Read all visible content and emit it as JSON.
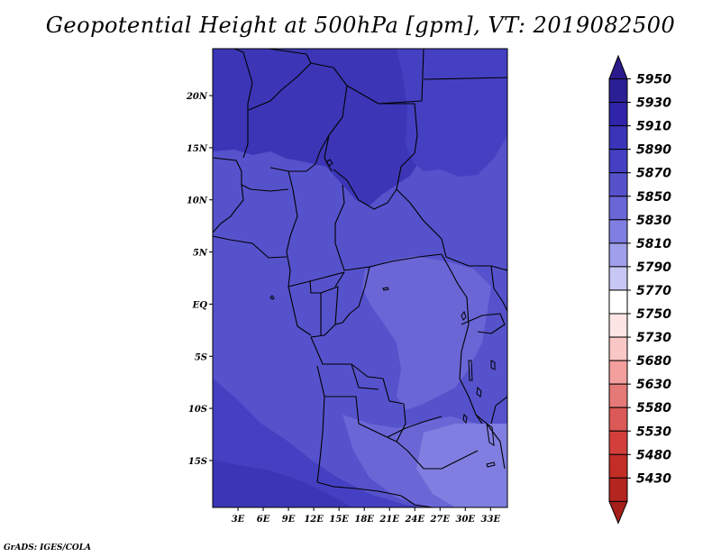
{
  "title": "Geopotential Height at 500hPa [gpm], VT: 2019082500",
  "footer": "GrADS: IGES/COLA",
  "map": {
    "lon_range": [
      0,
      35
    ],
    "lat_range": [
      -19.5,
      24.5
    ],
    "x_ticks": [
      {
        "value": 3,
        "label": "3E"
      },
      {
        "value": 6,
        "label": "6E"
      },
      {
        "value": 9,
        "label": "9E"
      },
      {
        "value": 12,
        "label": "12E"
      },
      {
        "value": 15,
        "label": "15E"
      },
      {
        "value": 18,
        "label": "18E"
      },
      {
        "value": 21,
        "label": "21E"
      },
      {
        "value": 24,
        "label": "24E"
      },
      {
        "value": 27,
        "label": "27E"
      },
      {
        "value": 30,
        "label": "30E"
      },
      {
        "value": 33,
        "label": "33E"
      }
    ],
    "y_ticks": [
      {
        "value": 20,
        "label": "20N"
      },
      {
        "value": 15,
        "label": "15N"
      },
      {
        "value": 10,
        "label": "10N"
      },
      {
        "value": 5,
        "label": "5N"
      },
      {
        "value": 0,
        "label": "EQ"
      },
      {
        "value": -5,
        "label": "5S"
      },
      {
        "value": -10,
        "label": "10S"
      },
      {
        "value": -15,
        "label": "15S"
      }
    ]
  },
  "colorbar": {
    "levels": [
      "5950",
      "5930",
      "5910",
      "5890",
      "5870",
      "5850",
      "5830",
      "5810",
      "5790",
      "5770",
      "5750",
      "5730",
      "5680",
      "5630",
      "5580",
      "5530",
      "5480",
      "5430"
    ],
    "colors": [
      "#2b1f96",
      "#3025a8",
      "#3a34b8",
      "#4540c2",
      "#5652cc",
      "#6a66d6",
      "#807ee0",
      "#a09fea",
      "#c8c7f4",
      "#ffffff",
      "#fde5e5",
      "#f9c7c6",
      "#f29f9d",
      "#e57977",
      "#db5956",
      "#d3403c",
      "#c22d26",
      "#b52520"
    ],
    "top_color": "#2a1a8c",
    "bottom_color": "#a51f1a"
  },
  "fills": {
    "base": "#5652cc",
    "high_north": "#3c36b6",
    "high_northeast": "#4540c2",
    "high_south": "#3c36b6",
    "mid_southwest": "#4540c2",
    "low_center": "#6a66d6",
    "lower_east": "#807ee0",
    "border": "#000000"
  }
}
